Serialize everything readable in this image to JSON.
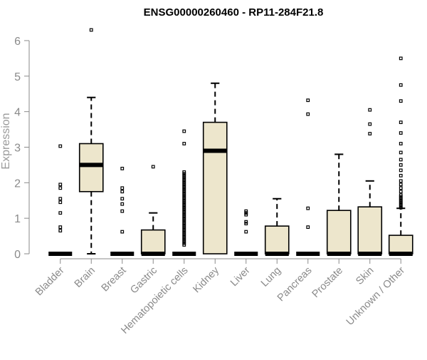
{
  "chart_data": {
    "type": "boxplot",
    "title": "ENSG00000260460 - RP11-284F21.8",
    "xlabel": "",
    "ylabel": "Expression",
    "ylim": [
      0,
      6.3
    ],
    "yticks": [
      0,
      1,
      2,
      3,
      4,
      5,
      6
    ],
    "box_fill": "#ede6cc",
    "box_stroke": "#000000",
    "axis_color": "#8a8a8a",
    "categories": [
      "Bladder",
      "Brain",
      "Breast",
      "Gastric",
      "Hematopoietic cells",
      "Kidney",
      "Liver",
      "Lung",
      "Pancreas",
      "Prostate",
      "Skin",
      "Unknown / Other"
    ],
    "boxes": [
      {
        "name": "Bladder",
        "min": 0,
        "q1": 0,
        "median": 0,
        "q3": 0,
        "max": 0,
        "outliers": [
          3.03,
          1.95,
          1.85,
          1.55,
          1.45,
          1.15,
          0.75,
          0.65
        ]
      },
      {
        "name": "Brain",
        "min": 0,
        "q1": 1.75,
        "median": 2.5,
        "q3": 3.1,
        "max": 4.4,
        "outliers": [
          6.3
        ]
      },
      {
        "name": "Breast",
        "min": 0,
        "q1": 0,
        "median": 0,
        "q3": 0,
        "max": 0,
        "outliers": [
          2.4,
          1.85,
          1.75,
          1.55,
          1.4,
          1.2,
          0.62
        ]
      },
      {
        "name": "Gastric",
        "min": 0,
        "q1": 0,
        "median": 0,
        "q3": 0.67,
        "max": 1.15,
        "outliers": [
          2.45
        ]
      },
      {
        "name": "Hematopoietic cells",
        "min": 0,
        "q1": 0,
        "median": 0,
        "q3": 0,
        "max": 0,
        "outliers": [
          3.45,
          3.1,
          2.3,
          2.25,
          2.2,
          2.15,
          2.1,
          2.05,
          2.0,
          1.95,
          1.9,
          1.85,
          1.8,
          1.75,
          1.7,
          1.65,
          1.6,
          1.55,
          1.5,
          1.45,
          1.4,
          1.35,
          1.3,
          1.25,
          1.2,
          1.15,
          1.1,
          1.05,
          1.0,
          0.95,
          0.9,
          0.85,
          0.8,
          0.75,
          0.7,
          0.65,
          0.6,
          0.55,
          0.5,
          0.45,
          0.4,
          0.35,
          0.3,
          0.25
        ]
      },
      {
        "name": "Kidney",
        "min": 0,
        "q1": 0,
        "median": 2.9,
        "q3": 3.7,
        "max": 4.8,
        "outliers": []
      },
      {
        "name": "Liver",
        "min": 0,
        "q1": 0,
        "median": 0,
        "q3": 0,
        "max": 0,
        "outliers": [
          1.2,
          1.15,
          1.1,
          0.9,
          0.85,
          0.62
        ]
      },
      {
        "name": "Lung",
        "min": 0,
        "q1": 0,
        "median": 0,
        "q3": 0.78,
        "max": 1.55,
        "outliers": []
      },
      {
        "name": "Pancreas",
        "min": 0,
        "q1": 0,
        "median": 0,
        "q3": 0,
        "max": 0,
        "outliers": [
          4.32,
          3.93,
          1.28,
          0.75
        ]
      },
      {
        "name": "Prostate",
        "min": 0,
        "q1": 0,
        "median": 0,
        "q3": 1.22,
        "max": 2.8,
        "outliers": []
      },
      {
        "name": "Skin",
        "min": 0,
        "q1": 0,
        "median": 0,
        "q3": 1.32,
        "max": 2.05,
        "outliers": [
          4.05,
          3.65,
          3.38
        ]
      },
      {
        "name": "Unknown / Other",
        "min": 0,
        "q1": 0,
        "median": 0,
        "q3": 0.52,
        "max": 1.28,
        "outliers": [
          5.5,
          4.75,
          4.3,
          3.7,
          3.4,
          3.1,
          2.85,
          2.65,
          2.5,
          2.35,
          2.2,
          2.05,
          1.95,
          1.85,
          1.75,
          1.65,
          1.6,
          1.55,
          1.5,
          1.45,
          1.4,
          1.35,
          1.3
        ]
      }
    ]
  }
}
